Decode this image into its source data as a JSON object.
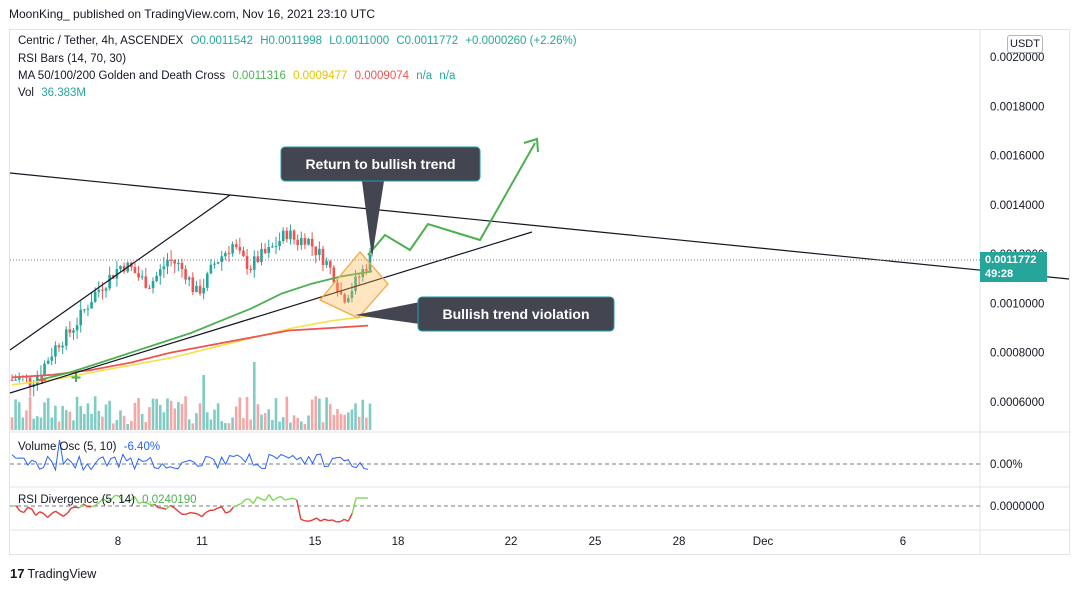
{
  "published": "MoonKing_ published on TradingView.com, Nov 16, 2021 23:10 UTC",
  "legend": {
    "symbol": "Centric / Tether, 4h, ASCENDEX",
    "o": "O0.0011542",
    "h": "H0.0011998",
    "l": "L0.0011000",
    "c": "C0.0011772",
    "change": "+0.0000260 (+2.26%)",
    "rsi_bars": "RSI Bars (14, 70, 30)",
    "ma_label": "MA 50/100/200 Golden and Death Cross",
    "ma_values": [
      "0.0011316",
      "0.0009477",
      "0.0009074",
      "n/a",
      "n/a"
    ],
    "vol_label": "Vol",
    "vol_value": "36.383M",
    "volosc_label": "Volume Osc (5, 10)",
    "volosc_value": "-6.40%",
    "rsidiv_label": "RSI Divergence (5, 14)",
    "rsidiv_value": "0.0240190"
  },
  "currency_button": "USDT",
  "last_price": "0.0011772",
  "countdown": "49:28",
  "annotations": {
    "top": "Return to bullish trend",
    "bottom": "Bullish trend violation"
  },
  "footer_logo": "TradingView",
  "colors": {
    "up": "#26a69a",
    "down": "#ef5350",
    "ma50": "#4caf50",
    "ma100": "#f5e048",
    "ma200": "#ef5350",
    "osc": "#2962ff"
  },
  "chart_data": {
    "type": "candlestick",
    "title": "Centric / Tether, 4h, ASCENDEX",
    "y_ticks": [
      "0.0020000",
      "0.0018000",
      "0.0016000",
      "0.0014000",
      "0.0012000",
      "0.0010000",
      "0.0008000",
      "0.0006000"
    ],
    "x_ticks": [
      "8",
      "11",
      "15",
      "18",
      "22",
      "25",
      "28",
      "Dec",
      "6"
    ],
    "ylim": [
      0.00045,
      0.00213
    ],
    "last_price": 0.0011772,
    "close_path": [
      0.00069,
      0.0007,
      0.00068,
      0.00072,
      0.00078,
      0.00084,
      0.00087,
      0.00092,
      0.00098,
      0.00104,
      0.00108,
      0.00112,
      0.00116,
      0.00114,
      0.0011,
      0.00108,
      0.00112,
      0.00118,
      0.00116,
      0.00112,
      0.00104,
      0.00108,
      0.00116,
      0.0012,
      0.00124,
      0.00118,
      0.00115,
      0.00119,
      0.00121,
      0.00125,
      0.00129,
      0.00125,
      0.00127,
      0.00122,
      0.00118,
      0.00112,
      0.00102,
      0.00106,
      0.00112,
      0.00118
    ],
    "ma50": [
      0.00069,
      0.00072,
      0.00076,
      0.0008,
      0.00084,
      0.00088,
      0.00093,
      0.00098,
      0.00104,
      0.00108,
      0.00111,
      0.00113
    ],
    "ma100": [
      0.00067,
      0.00069,
      0.00072,
      0.00075,
      0.00078,
      0.00082,
      0.00086,
      0.0009,
      0.00093,
      0.00095
    ],
    "ma200": [
      0.0007,
      0.00071,
      0.00073,
      0.00076,
      0.0008,
      0.00083,
      0.00086,
      0.00089,
      0.0009,
      0.00091
    ],
    "volosc_ticks": [
      "0.00%"
    ],
    "rsidiv_ticks": [
      "0.0000000"
    ]
  }
}
